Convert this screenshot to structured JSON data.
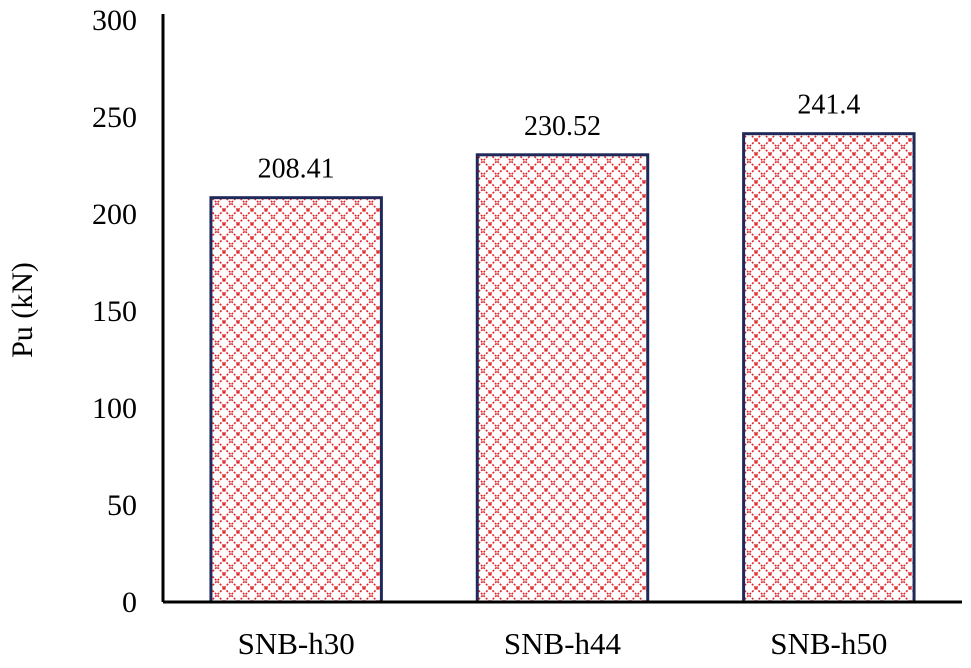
{
  "chart_data": {
    "type": "bar",
    "categories": [
      "SNB-h30",
      "SNB-h44",
      "SNB-h50"
    ],
    "values": [
      208.41,
      230.52,
      241.4
    ],
    "data_labels": [
      "208.41",
      "230.52",
      "241.4"
    ],
    "title": "",
    "xlabel": "",
    "ylabel": "Pu (kN)",
    "ylim": [
      0,
      300
    ],
    "yticks": [
      0,
      50,
      100,
      150,
      200,
      250,
      300
    ],
    "grid": false,
    "legend": "none",
    "bar_fill_pattern": "red diamond crosshatch on white",
    "colors": {
      "bar_outline": "#1f2a5a",
      "pattern": "#e0262b",
      "axis": "#000000"
    }
  }
}
